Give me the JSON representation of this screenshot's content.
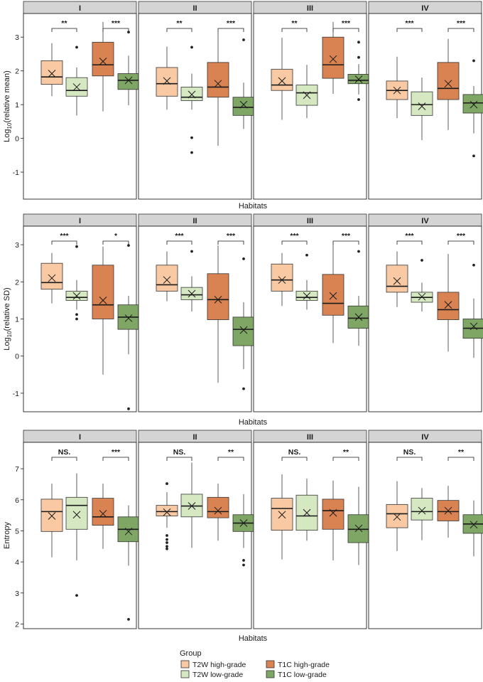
{
  "colors": {
    "t2w_high": "#f8c9a2",
    "t2w_low": "#d5e8c2",
    "t1c_high": "#d98353",
    "t1c_low": "#7fa665",
    "strip_fill": "#d4d4d4",
    "ink": "#1a1a1a"
  },
  "legend": {
    "title": "Group",
    "items": [
      {
        "label": "T2W high-grade",
        "color_key": "t2w_high"
      },
      {
        "label": "T2W low-grade",
        "color_key": "t2w_low"
      },
      {
        "label": "T1C high-grade",
        "color_key": "t1c_high"
      },
      {
        "label": "T1C low-grade",
        "color_key": "t1c_low"
      }
    ]
  },
  "chart_data": [
    {
      "type": "box",
      "ylabel_prefix": "Log",
      "ylabel_sub": "10",
      "ylabel_rest": "(relative mean)",
      "xlabel": "Habitats",
      "ylim": [
        -1.8,
        3.7
      ],
      "yticks": [
        -1,
        0,
        1,
        2,
        3
      ],
      "panels": [
        {
          "label": "I",
          "sig": [
            "**",
            "***"
          ],
          "boxes": [
            {
              "q1": 1.6,
              "median": 1.82,
              "q3": 2.3,
              "lo": 1.25,
              "hi": 2.82,
              "mean": 1.92,
              "outliers": []
            },
            {
              "q1": 1.25,
              "median": 1.42,
              "q3": 1.8,
              "lo": 0.68,
              "hi": 2.1,
              "mean": 1.52,
              "outliers": [
                2.7
              ]
            },
            {
              "q1": 1.85,
              "median": 2.18,
              "q3": 2.85,
              "lo": 0.8,
              "hi": 3.45,
              "mean": 2.28,
              "outliers": []
            },
            {
              "q1": 1.45,
              "median": 1.72,
              "q3": 1.92,
              "lo": 0.98,
              "hi": 2.45,
              "mean": 1.72,
              "outliers": [
                3.15
              ]
            }
          ]
        },
        {
          "label": "II",
          "sig": [
            "**",
            "***"
          ],
          "boxes": [
            {
              "q1": 1.25,
              "median": 1.62,
              "q3": 2.1,
              "lo": 0.85,
              "hi": 2.72,
              "mean": 1.7,
              "outliers": []
            },
            {
              "q1": 1.12,
              "median": 1.22,
              "q3": 1.52,
              "lo": 0.85,
              "hi": 1.92,
              "mean": 1.3,
              "outliers": [
                2.7,
                0.02,
                -0.42
              ]
            },
            {
              "q1": 1.22,
              "median": 1.52,
              "q3": 2.25,
              "lo": -0.22,
              "hi": 3.15,
              "mean": 1.62,
              "outliers": []
            },
            {
              "q1": 0.68,
              "median": 0.92,
              "q3": 1.22,
              "lo": 0.28,
              "hi": 1.65,
              "mean": 1.0,
              "outliers": [
                2.92
              ]
            }
          ]
        },
        {
          "label": "III",
          "sig": [
            "**",
            "***"
          ],
          "boxes": [
            {
              "q1": 1.42,
              "median": 1.58,
              "q3": 2.05,
              "lo": 0.55,
              "hi": 2.98,
              "mean": 1.7,
              "outliers": []
            },
            {
              "q1": 0.98,
              "median": 1.35,
              "q3": 1.58,
              "lo": 0.6,
              "hi": 2.18,
              "mean": 1.28,
              "outliers": []
            },
            {
              "q1": 1.78,
              "median": 2.18,
              "q3": 3.0,
              "lo": 1.32,
              "hi": 3.45,
              "mean": 2.35,
              "outliers": []
            },
            {
              "q1": 1.62,
              "median": 1.72,
              "q3": 1.9,
              "lo": 1.3,
              "hi": 2.2,
              "mean": 1.75,
              "outliers": [
                2.85,
                2.4,
                1.15
              ]
            }
          ]
        },
        {
          "label": "IV",
          "sig": [
            "***",
            "***"
          ],
          "boxes": [
            {
              "q1": 1.15,
              "median": 1.42,
              "q3": 1.7,
              "lo": 0.6,
              "hi": 2.42,
              "mean": 1.42,
              "outliers": []
            },
            {
              "q1": 0.68,
              "median": 1.0,
              "q3": 1.38,
              "lo": -0.05,
              "hi": 1.8,
              "mean": 0.95,
              "outliers": []
            },
            {
              "q1": 1.15,
              "median": 1.48,
              "q3": 2.25,
              "lo": 0.25,
              "hi": 2.95,
              "mean": 1.62,
              "outliers": []
            },
            {
              "q1": 0.75,
              "median": 1.05,
              "q3": 1.3,
              "lo": 0.15,
              "hi": 1.55,
              "mean": 1.0,
              "outliers": [
                2.3,
                -0.52
              ]
            }
          ]
        }
      ]
    },
    {
      "type": "box",
      "ylabel_prefix": "Log",
      "ylabel_sub": "10",
      "ylabel_rest": "(relative SD)",
      "xlabel": "Habitats",
      "ylim": [
        -1.5,
        3.5
      ],
      "yticks": [
        -1,
        0,
        1,
        2,
        3
      ],
      "panels": [
        {
          "label": "I",
          "sig": [
            "***",
            "*"
          ],
          "boxes": [
            {
              "q1": 1.8,
              "median": 1.98,
              "q3": 2.5,
              "lo": 1.42,
              "hi": 2.78,
              "mean": 2.1,
              "outliers": []
            },
            {
              "q1": 1.5,
              "median": 1.58,
              "q3": 1.75,
              "lo": 1.25,
              "hi": 2.05,
              "mean": 1.62,
              "outliers": [
                2.95,
                1.12,
                1.0
              ]
            },
            {
              "q1": 1.0,
              "median": 1.38,
              "q3": 2.45,
              "lo": -0.5,
              "hi": 2.95,
              "mean": 1.5,
              "outliers": []
            },
            {
              "q1": 0.72,
              "median": 1.05,
              "q3": 1.38,
              "lo": 0.05,
              "hi": 1.62,
              "mean": 1.02,
              "outliers": [
                2.98,
                -1.42
              ]
            }
          ]
        },
        {
          "label": "II",
          "sig": [
            "***",
            "***"
          ],
          "boxes": [
            {
              "q1": 1.75,
              "median": 1.92,
              "q3": 2.45,
              "lo": 1.48,
              "hi": 2.82,
              "mean": 2.05,
              "outliers": []
            },
            {
              "q1": 1.52,
              "median": 1.65,
              "q3": 1.85,
              "lo": 1.2,
              "hi": 2.15,
              "mean": 1.68,
              "outliers": [
                2.82
              ]
            },
            {
              "q1": 0.98,
              "median": 1.52,
              "q3": 2.22,
              "lo": -0.72,
              "hi": 2.98,
              "mean": 1.52,
              "outliers": []
            },
            {
              "q1": 0.28,
              "median": 0.72,
              "q3": 1.05,
              "lo": -0.35,
              "hi": 1.45,
              "mean": 0.7,
              "outliers": [
                2.62,
                -0.88
              ]
            }
          ]
        },
        {
          "label": "III",
          "sig": [
            "***",
            "***"
          ],
          "boxes": [
            {
              "q1": 1.75,
              "median": 2.05,
              "q3": 2.48,
              "lo": 1.35,
              "hi": 2.78,
              "mean": 2.05,
              "outliers": []
            },
            {
              "q1": 1.5,
              "median": 1.58,
              "q3": 1.75,
              "lo": 1.25,
              "hi": 2.05,
              "mean": 1.62,
              "outliers": [
                2.72
              ]
            },
            {
              "q1": 1.1,
              "median": 1.42,
              "q3": 2.2,
              "lo": 0.35,
              "hi": 3.05,
              "mean": 1.62,
              "outliers": []
            },
            {
              "q1": 0.75,
              "median": 1.02,
              "q3": 1.35,
              "lo": 0.28,
              "hi": 1.62,
              "mean": 1.05,
              "outliers": [
                2.82
              ]
            }
          ]
        },
        {
          "label": "IV",
          "sig": [
            "***",
            "***"
          ],
          "boxes": [
            {
              "q1": 1.72,
              "median": 1.88,
              "q3": 2.45,
              "lo": 1.32,
              "hi": 2.82,
              "mean": 2.02,
              "outliers": []
            },
            {
              "q1": 1.45,
              "median": 1.58,
              "q3": 1.72,
              "lo": 1.2,
              "hi": 1.98,
              "mean": 1.6,
              "outliers": [
                2.58
              ]
            },
            {
              "q1": 0.98,
              "median": 1.25,
              "q3": 1.72,
              "lo": 0.12,
              "hi": 2.75,
              "mean": 1.38,
              "outliers": []
            },
            {
              "q1": 0.48,
              "median": 0.75,
              "q3": 1.0,
              "lo": -0.05,
              "hi": 1.55,
              "mean": 0.8,
              "outliers": [
                2.45
              ]
            }
          ]
        }
      ]
    },
    {
      "type": "box",
      "ylabel_prefix": "Entropy",
      "ylabel_sub": "",
      "ylabel_rest": "",
      "xlabel": "Habitats",
      "ylim": [
        1.85,
        7.85
      ],
      "yticks": [
        2,
        3,
        4,
        5,
        6,
        7
      ],
      "panels": [
        {
          "label": "I",
          "sig": [
            "NS.",
            "***"
          ],
          "boxes": [
            {
              "q1": 4.98,
              "median": 5.62,
              "q3": 6.02,
              "lo": 4.15,
              "hi": 6.52,
              "mean": 5.48,
              "outliers": []
            },
            {
              "q1": 5.05,
              "median": 5.82,
              "q3": 6.08,
              "lo": 4.05,
              "hi": 6.85,
              "mean": 5.52,
              "outliers": [
                2.92
              ]
            },
            {
              "q1": 5.18,
              "median": 5.45,
              "q3": 6.05,
              "lo": 4.42,
              "hi": 6.52,
              "mean": 5.55,
              "outliers": []
            },
            {
              "q1": 4.65,
              "median": 5.05,
              "q3": 5.45,
              "lo": 3.88,
              "hi": 5.82,
              "mean": 4.98,
              "outliers": [
                2.15
              ]
            }
          ]
        },
        {
          "label": "II",
          "sig": [
            "NS.",
            "**"
          ],
          "boxes": [
            {
              "q1": 5.48,
              "median": 5.62,
              "q3": 5.82,
              "lo": 5.1,
              "hi": 6.25,
              "mean": 5.6,
              "outliers": [
                6.52,
                4.85,
                4.72,
                4.62,
                4.5,
                4.42
              ]
            },
            {
              "q1": 5.45,
              "median": 5.8,
              "q3": 6.18,
              "lo": 4.45,
              "hi": 7.2,
              "mean": 5.8,
              "outliers": []
            },
            {
              "q1": 5.42,
              "median": 5.62,
              "q3": 6.08,
              "lo": 4.68,
              "hi": 6.52,
              "mean": 5.65,
              "outliers": []
            },
            {
              "q1": 4.98,
              "median": 5.25,
              "q3": 5.52,
              "lo": 4.45,
              "hi": 6.18,
              "mean": 5.25,
              "outliers": [
                4.05,
                3.9
              ]
            }
          ]
        },
        {
          "label": "III",
          "sig": [
            "NS.",
            "**"
          ],
          "boxes": [
            {
              "q1": 5.02,
              "median": 5.72,
              "q3": 6.05,
              "lo": 4.08,
              "hi": 6.82,
              "mean": 5.52,
              "outliers": []
            },
            {
              "q1": 5.02,
              "median": 5.48,
              "q3": 6.15,
              "lo": 4.68,
              "hi": 6.68,
              "mean": 5.58,
              "outliers": []
            },
            {
              "q1": 5.05,
              "median": 5.65,
              "q3": 6.02,
              "lo": 4.05,
              "hi": 6.62,
              "mean": 5.58,
              "outliers": []
            },
            {
              "q1": 4.62,
              "median": 5.05,
              "q3": 5.52,
              "lo": 3.9,
              "hi": 6.42,
              "mean": 5.08,
              "outliers": []
            }
          ]
        },
        {
          "label": "IV",
          "sig": [
            "NS.",
            "**"
          ],
          "boxes": [
            {
              "q1": 5.1,
              "median": 5.55,
              "q3": 5.85,
              "lo": 4.35,
              "hi": 6.6,
              "mean": 5.45,
              "outliers": []
            },
            {
              "q1": 5.35,
              "median": 5.62,
              "q3": 6.05,
              "lo": 4.7,
              "hi": 6.38,
              "mean": 5.65,
              "outliers": []
            },
            {
              "q1": 5.32,
              "median": 5.62,
              "q3": 5.98,
              "lo": 4.78,
              "hi": 6.45,
              "mean": 5.65,
              "outliers": []
            },
            {
              "q1": 4.92,
              "median": 5.22,
              "q3": 5.52,
              "lo": 4.18,
              "hi": 5.98,
              "mean": 5.2,
              "outliers": []
            }
          ]
        }
      ]
    }
  ]
}
